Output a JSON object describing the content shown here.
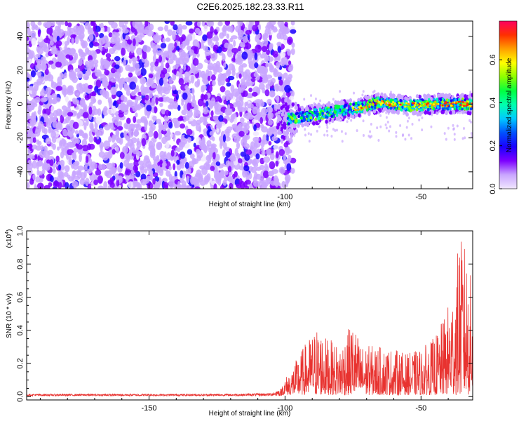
{
  "title": "C2E6.2025.182.23.33.R11",
  "chart_data": [
    {
      "type": "heatmap",
      "xlabel": "Height of straight line (km)",
      "ylabel": "Frequency (Hz)",
      "xlim": [
        -195,
        -31
      ],
      "ylim": [
        -50,
        49
      ],
      "xticks": [
        -150,
        -100,
        -50
      ],
      "xtick_labels": [
        "-150",
        "-100",
        "-50"
      ],
      "yticks": [
        -40,
        -20,
        0,
        20,
        40
      ],
      "ytick_labels": [
        "-40",
        "-20",
        "0",
        "20",
        "40"
      ],
      "colorbar": {
        "label": "Normalized spectral amplitude",
        "range": [
          0,
          0.78
        ],
        "ticks": [
          0.0,
          0.2,
          0.4,
          0.6
        ],
        "tick_labels": [
          "0.0",
          "0.2",
          "0.4",
          "0.6"
        ],
        "colors": [
          "#f0e6ff",
          "#c9a6ff",
          "#7d00ff",
          "#1a00ff",
          "#0050ff",
          "#00c8ff",
          "#00ffb0",
          "#00ff40",
          "#8cff00",
          "#ffff00",
          "#ffa000",
          "#ff3000",
          "#ff0060"
        ]
      },
      "noise_region": {
        "x": [
          -195,
          -100
        ],
        "y": [
          -50,
          49
        ],
        "amplitude": [
          0.02,
          0.2
        ]
      },
      "signal_band": {
        "x": [
          -103,
          -73,
          -65,
          -55,
          -45,
          -31
        ],
        "center_frequency": [
          -10,
          -2,
          1,
          -1,
          0,
          0
        ],
        "amplitude_peak": 0.75
      }
    },
    {
      "type": "line",
      "xlabel": "Height of straight line (km)",
      "ylabel": "SNR (10 * v/v)",
      "y_multiplier": "(x10",
      "y_multiplier_exp": "4",
      "y_multiplier_close": ")",
      "xlim": [
        -195,
        -31
      ],
      "ylim": [
        -0.02,
        1.0
      ],
      "xticks": [
        -150,
        -100,
        -50
      ],
      "xtick_labels": [
        "-150",
        "-100",
        "-50"
      ],
      "yticks": [
        0.0,
        0.2,
        0.4,
        0.6,
        0.8,
        1.0
      ],
      "ytick_labels": [
        "0.0",
        "0.2",
        "0.4",
        "0.6",
        "0.8",
        "1.0"
      ],
      "line_color": "#e8322f",
      "series": [
        {
          "envelope": {
            "x": [
              -195,
              -120,
              -105,
              -101,
              -98,
              -93,
              -88,
              -85,
              -80,
              -75,
              -72,
              -68,
              -60,
              -55,
              -50,
              -45,
              -42,
              -40,
              -38,
              -36,
              -34,
              -32,
              -31
            ],
            "y": [
              0.02,
              0.02,
              0.03,
              0.08,
              0.15,
              0.3,
              0.42,
              0.35,
              0.3,
              0.45,
              0.3,
              0.3,
              0.28,
              0.25,
              0.28,
              0.35,
              0.45,
              0.55,
              0.65,
              0.95,
              0.92,
              0.75,
              0.65
            ]
          }
        }
      ]
    }
  ]
}
